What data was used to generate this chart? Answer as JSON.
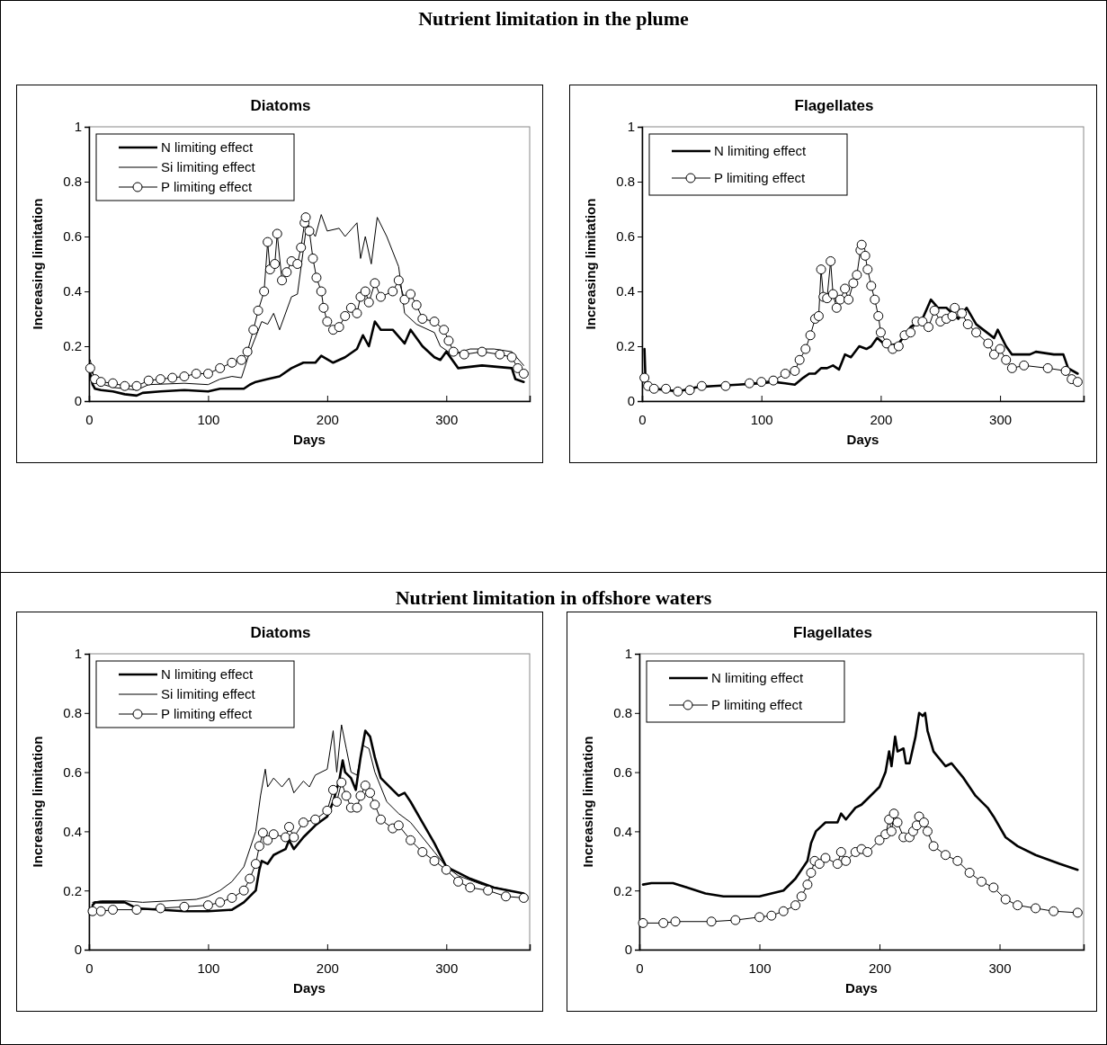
{
  "chart_data": [
    {
      "type": "line",
      "title": "Diatoms",
      "annotations": [
        "Nutrient limitation in the plume"
      ],
      "xlabel": "Days",
      "ylabel": "Increasing limitation",
      "xlim": [
        0,
        370
      ],
      "ylim": [
        0,
        1
      ],
      "xticks": [
        0,
        100,
        200,
        300
      ],
      "yticks": [
        0,
        0.2,
        0.4,
        0.6,
        0.8,
        1
      ],
      "grid": false,
      "legend": "top left",
      "series": [
        {
          "name": "N limiting effect",
          "color": "#000000",
          "marker": "none",
          "x": [
            1,
            3,
            5,
            10,
            20,
            30,
            40,
            45,
            60,
            80,
            100,
            110,
            130,
            135,
            140,
            150,
            160,
            170,
            180,
            190,
            195,
            205,
            215,
            225,
            230,
            235,
            240,
            245,
            255,
            265,
            270,
            280,
            290,
            295,
            300,
            310,
            330,
            355,
            358,
            365
          ],
          "values": [
            0.1,
            0.06,
            0.045,
            0.04,
            0.035,
            0.025,
            0.02,
            0.03,
            0.035,
            0.04,
            0.035,
            0.045,
            0.045,
            0.06,
            0.07,
            0.08,
            0.09,
            0.12,
            0.14,
            0.14,
            0.165,
            0.14,
            0.16,
            0.19,
            0.24,
            0.2,
            0.29,
            0.26,
            0.26,
            0.21,
            0.26,
            0.2,
            0.16,
            0.15,
            0.18,
            0.12,
            0.13,
            0.12,
            0.08,
            0.07
          ]
        },
        {
          "name": "Si limiting effect",
          "color": "#000000",
          "marker": "none",
          "x": [
            1,
            5,
            20,
            40,
            50,
            80,
            100,
            110,
            120,
            128,
            135,
            145,
            150,
            155,
            160,
            170,
            175,
            183,
            190,
            195,
            200,
            210,
            215,
            225,
            228,
            232,
            237,
            242,
            250,
            260,
            265,
            275,
            290,
            295,
            305,
            320,
            340,
            355,
            365
          ],
          "values": [
            0.15,
            0.07,
            0.05,
            0.04,
            0.06,
            0.065,
            0.06,
            0.08,
            0.09,
            0.085,
            0.18,
            0.29,
            0.28,
            0.32,
            0.26,
            0.38,
            0.39,
            0.65,
            0.6,
            0.68,
            0.62,
            0.63,
            0.6,
            0.65,
            0.52,
            0.6,
            0.5,
            0.67,
            0.6,
            0.49,
            0.32,
            0.28,
            0.25,
            0.2,
            0.17,
            0.19,
            0.19,
            0.18,
            0.13
          ]
        },
        {
          "name": "P limiting effect",
          "color": "#000000",
          "marker": "circle",
          "x": [
            1,
            5,
            10,
            20,
            30,
            40,
            50,
            60,
            70,
            80,
            90,
            100,
            110,
            120,
            128,
            133,
            138,
            142,
            147,
            150,
            152,
            156,
            158,
            162,
            166,
            170,
            175,
            178,
            181,
            182,
            185,
            188,
            191,
            195,
            197,
            200,
            205,
            210,
            215,
            220,
            225,
            228,
            232,
            235,
            240,
            245,
            255,
            260,
            265,
            270,
            275,
            280,
            290,
            298,
            302,
            306,
            315,
            330,
            345,
            355,
            360,
            365
          ],
          "values": [
            0.12,
            0.08,
            0.07,
            0.065,
            0.055,
            0.055,
            0.075,
            0.08,
            0.085,
            0.09,
            0.1,
            0.1,
            0.12,
            0.14,
            0.15,
            0.18,
            0.26,
            0.33,
            0.4,
            0.58,
            0.48,
            0.5,
            0.61,
            0.44,
            0.47,
            0.51,
            0.5,
            0.56,
            0.65,
            0.67,
            0.62,
            0.52,
            0.45,
            0.4,
            0.34,
            0.29,
            0.26,
            0.27,
            0.31,
            0.34,
            0.32,
            0.38,
            0.4,
            0.36,
            0.43,
            0.38,
            0.4,
            0.44,
            0.37,
            0.39,
            0.35,
            0.3,
            0.29,
            0.26,
            0.22,
            0.18,
            0.17,
            0.18,
            0.17,
            0.16,
            0.12,
            0.1
          ]
        }
      ]
    },
    {
      "type": "line",
      "title": "Flagellates",
      "xlabel": "Days",
      "ylabel": "Increasing limitation",
      "xlim": [
        0,
        370
      ],
      "ylim": [
        0,
        1
      ],
      "xticks": [
        0,
        100,
        200,
        300
      ],
      "yticks": [
        0,
        0.2,
        0.4,
        0.6,
        0.8,
        1
      ],
      "grid": false,
      "legend": "top left",
      "series": [
        {
          "name": "N limiting effect",
          "color": "#000000",
          "marker": "none",
          "x": [
            2,
            3,
            10,
            30,
            45,
            60,
            80,
            100,
            110,
            120,
            128,
            135,
            140,
            145,
            150,
            155,
            160,
            165,
            170,
            175,
            182,
            188,
            192,
            197,
            205,
            215,
            225,
            235,
            242,
            248,
            255,
            265,
            272,
            280,
            295,
            298,
            305,
            310,
            325,
            330,
            345,
            353,
            357,
            365
          ],
          "values": [
            0.19,
            0.06,
            0.045,
            0.035,
            0.05,
            0.055,
            0.06,
            0.065,
            0.07,
            0.065,
            0.06,
            0.085,
            0.1,
            0.1,
            0.12,
            0.12,
            0.13,
            0.115,
            0.17,
            0.16,
            0.2,
            0.19,
            0.2,
            0.23,
            0.2,
            0.21,
            0.27,
            0.3,
            0.37,
            0.34,
            0.34,
            0.3,
            0.34,
            0.28,
            0.23,
            0.26,
            0.2,
            0.17,
            0.17,
            0.18,
            0.17,
            0.17,
            0.12,
            0.1
          ]
        },
        {
          "name": "P limiting effect",
          "color": "#000000",
          "marker": "circle",
          "x": [
            2,
            5,
            10,
            20,
            30,
            40,
            50,
            70,
            90,
            100,
            110,
            120,
            128,
            132,
            137,
            141,
            145,
            148,
            150,
            152,
            155,
            158,
            160,
            163,
            166,
            170,
            173,
            177,
            180,
            183,
            184,
            187,
            189,
            192,
            195,
            198,
            200,
            205,
            210,
            215,
            220,
            225,
            230,
            235,
            240,
            245,
            250,
            255,
            260,
            262,
            268,
            273,
            280,
            290,
            295,
            300,
            305,
            310,
            320,
            340,
            355,
            360,
            365
          ],
          "values": [
            0.085,
            0.055,
            0.045,
            0.045,
            0.035,
            0.04,
            0.055,
            0.055,
            0.065,
            0.07,
            0.075,
            0.1,
            0.11,
            0.15,
            0.19,
            0.24,
            0.3,
            0.31,
            0.48,
            0.38,
            0.375,
            0.51,
            0.39,
            0.34,
            0.37,
            0.41,
            0.37,
            0.43,
            0.46,
            0.55,
            0.57,
            0.53,
            0.48,
            0.42,
            0.37,
            0.31,
            0.25,
            0.21,
            0.19,
            0.2,
            0.24,
            0.25,
            0.29,
            0.29,
            0.27,
            0.33,
            0.29,
            0.3,
            0.31,
            0.34,
            0.32,
            0.28,
            0.25,
            0.21,
            0.17,
            0.19,
            0.15,
            0.12,
            0.13,
            0.12,
            0.11,
            0.08,
            0.07
          ]
        }
      ]
    },
    {
      "type": "line",
      "title": "Diatoms",
      "annotations": [
        "Nutrient limitation in offshore waters"
      ],
      "xlabel": "Days",
      "ylabel": "Increasing limitation",
      "xlim": [
        0,
        370
      ],
      "ylim": [
        0,
        1
      ],
      "xticks": [
        0,
        100,
        200,
        300
      ],
      "yticks": [
        0,
        0.2,
        0.4,
        0.6,
        0.8,
        1
      ],
      "grid": false,
      "legend": "top left",
      "series": [
        {
          "name": "N limiting effect",
          "color": "#000000",
          "marker": "none",
          "x": [
            3,
            5,
            30,
            40,
            80,
            100,
            120,
            130,
            140,
            143,
            145,
            150,
            155,
            160,
            165,
            168,
            172,
            180,
            190,
            200,
            205,
            210,
            213,
            215,
            220,
            224,
            228,
            232,
            236,
            240,
            245,
            255,
            260,
            265,
            270,
            280,
            290,
            300,
            310,
            320,
            340,
            365
          ],
          "values": [
            0.15,
            0.16,
            0.16,
            0.14,
            0.13,
            0.13,
            0.135,
            0.16,
            0.2,
            0.27,
            0.3,
            0.29,
            0.32,
            0.33,
            0.34,
            0.37,
            0.34,
            0.38,
            0.42,
            0.45,
            0.5,
            0.57,
            0.64,
            0.6,
            0.58,
            0.54,
            0.65,
            0.74,
            0.72,
            0.65,
            0.58,
            0.54,
            0.52,
            0.53,
            0.5,
            0.43,
            0.36,
            0.28,
            0.26,
            0.24,
            0.21,
            0.19
          ]
        },
        {
          "name": "Si limiting effect",
          "color": "#000000",
          "marker": "none",
          "x": [
            3,
            10,
            30,
            45,
            90,
            100,
            110,
            120,
            130,
            140,
            144,
            148,
            150,
            155,
            162,
            168,
            172,
            180,
            185,
            190,
            200,
            205,
            208,
            212,
            216,
            220,
            225,
            230,
            235,
            240,
            250,
            260,
            270,
            280,
            290,
            300,
            310,
            330,
            365
          ],
          "values": [
            0.16,
            0.165,
            0.165,
            0.16,
            0.17,
            0.18,
            0.2,
            0.23,
            0.28,
            0.4,
            0.52,
            0.61,
            0.55,
            0.58,
            0.55,
            0.58,
            0.53,
            0.57,
            0.55,
            0.59,
            0.61,
            0.74,
            0.6,
            0.76,
            0.68,
            0.6,
            0.59,
            0.69,
            0.68,
            0.6,
            0.5,
            0.46,
            0.43,
            0.38,
            0.33,
            0.28,
            0.25,
            0.22,
            0.19
          ]
        },
        {
          "name": "P limiting effect",
          "color": "#000000",
          "marker": "circle",
          "x": [
            3,
            10,
            20,
            40,
            60,
            80,
            100,
            110,
            120,
            130,
            135,
            140,
            143,
            146,
            150,
            155,
            165,
            168,
            172,
            180,
            190,
            200,
            205,
            208,
            212,
            216,
            220,
            225,
            228,
            232,
            236,
            240,
            245,
            255,
            260,
            270,
            280,
            290,
            300,
            310,
            320,
            335,
            350,
            365
          ],
          "values": [
            0.13,
            0.13,
            0.135,
            0.135,
            0.14,
            0.145,
            0.15,
            0.16,
            0.175,
            0.2,
            0.24,
            0.29,
            0.35,
            0.395,
            0.37,
            0.39,
            0.38,
            0.415,
            0.38,
            0.43,
            0.44,
            0.47,
            0.54,
            0.5,
            0.565,
            0.52,
            0.48,
            0.48,
            0.52,
            0.555,
            0.53,
            0.49,
            0.44,
            0.41,
            0.42,
            0.37,
            0.33,
            0.3,
            0.27,
            0.23,
            0.21,
            0.2,
            0.18,
            0.175
          ]
        }
      ]
    },
    {
      "type": "line",
      "title": "Flagellates",
      "xlabel": "Days",
      "ylabel": "Increasing limitation",
      "xlim": [
        0,
        370
      ],
      "ylim": [
        0,
        1
      ],
      "xticks": [
        0,
        100,
        200,
        300
      ],
      "yticks": [
        0,
        0.2,
        0.4,
        0.6,
        0.8,
        1
      ],
      "grid": false,
      "legend": "top left",
      "series": [
        {
          "name": "N limiting effect",
          "color": "#000000",
          "marker": "none",
          "x": [
            3,
            10,
            28,
            40,
            55,
            70,
            100,
            110,
            120,
            130,
            140,
            143,
            147,
            155,
            165,
            168,
            172,
            180,
            185,
            190,
            200,
            205,
            208,
            210,
            213,
            215,
            220,
            222,
            225,
            230,
            233,
            236,
            238,
            240,
            245,
            255,
            260,
            270,
            280,
            290,
            295,
            305,
            315,
            330,
            350,
            365
          ],
          "values": [
            0.22,
            0.225,
            0.225,
            0.21,
            0.19,
            0.18,
            0.18,
            0.19,
            0.2,
            0.24,
            0.3,
            0.36,
            0.4,
            0.43,
            0.43,
            0.46,
            0.44,
            0.48,
            0.49,
            0.51,
            0.55,
            0.6,
            0.67,
            0.62,
            0.72,
            0.67,
            0.68,
            0.63,
            0.63,
            0.72,
            0.8,
            0.79,
            0.8,
            0.74,
            0.67,
            0.62,
            0.63,
            0.58,
            0.52,
            0.48,
            0.45,
            0.38,
            0.35,
            0.32,
            0.29,
            0.27
          ]
        },
        {
          "name": "P limiting effect",
          "color": "#000000",
          "marker": "circle",
          "x": [
            3,
            20,
            30,
            60,
            80,
            100,
            110,
            120,
            130,
            135,
            140,
            143,
            146,
            150,
            155,
            165,
            168,
            172,
            180,
            185,
            190,
            200,
            205,
            208,
            210,
            212,
            215,
            220,
            225,
            228,
            231,
            233,
            237,
            240,
            245,
            255,
            265,
            275,
            285,
            295,
            305,
            315,
            330,
            345,
            365
          ],
          "values": [
            0.09,
            0.09,
            0.095,
            0.095,
            0.1,
            0.11,
            0.115,
            0.13,
            0.15,
            0.18,
            0.22,
            0.26,
            0.3,
            0.29,
            0.31,
            0.29,
            0.33,
            0.3,
            0.33,
            0.34,
            0.33,
            0.37,
            0.39,
            0.44,
            0.4,
            0.46,
            0.43,
            0.38,
            0.38,
            0.4,
            0.42,
            0.45,
            0.43,
            0.4,
            0.35,
            0.32,
            0.3,
            0.26,
            0.23,
            0.21,
            0.17,
            0.15,
            0.14,
            0.13,
            0.125
          ]
        }
      ]
    }
  ]
}
